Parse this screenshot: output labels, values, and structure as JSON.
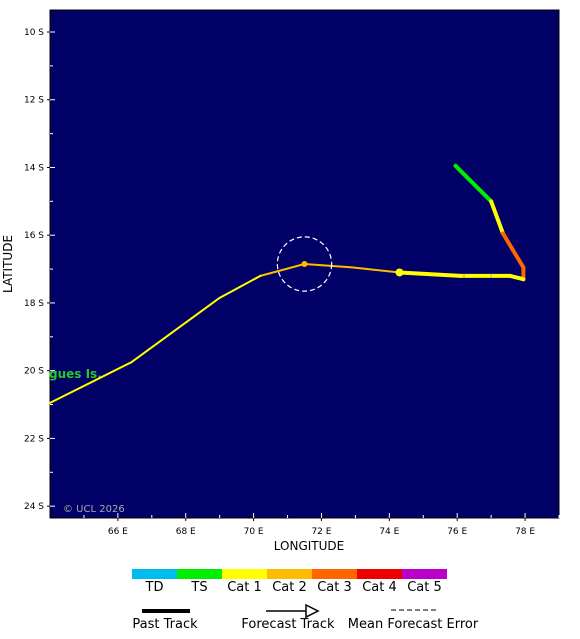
{
  "map": {
    "xlabel": "LONGITUDE",
    "ylabel": "LATITUDE",
    "x_ticks": [
      "66 E",
      "68 E",
      "70 E",
      "72 E",
      "74 E",
      "76 E",
      "78 E"
    ],
    "y_ticks": [
      "10 S",
      "12 S",
      "14 S",
      "16 S",
      "18 S",
      "20 S",
      "22 S",
      "24 S"
    ],
    "x_tick_values": [
      66,
      68,
      70,
      72,
      74,
      76,
      78
    ],
    "y_tick_values": [
      10,
      12,
      14,
      16,
      18,
      20,
      22,
      24
    ],
    "lon_range": [
      64,
      79
    ],
    "lat_range": [
      9.35,
      24.35
    ],
    "background_color": "#000066",
    "copyright": "© UCL 2026",
    "place_label": "gues Is.",
    "place_label_color": "#22cc22"
  },
  "past_track": [
    {
      "lon": 75.95,
      "lat": 13.95,
      "cat": "TS"
    },
    {
      "lon": 77.0,
      "lat": 15.0,
      "cat": "TS"
    },
    {
      "lon": 77.35,
      "lat": 15.95,
      "cat": "Cat 1"
    },
    {
      "lon": 77.95,
      "lat": 16.95,
      "cat": "Cat 3"
    },
    {
      "lon": 77.95,
      "lat": 17.3,
      "cat": "Cat 3"
    },
    {
      "lon": 77.55,
      "lat": 17.2,
      "cat": "Cat 1"
    },
    {
      "lon": 76.1,
      "lat": 17.2,
      "cat": "Cat 1"
    },
    {
      "lon": 74.3,
      "lat": 17.1,
      "cat": "Cat 1"
    }
  ],
  "forecast_track": [
    {
      "lon": 74.3,
      "lat": 17.1,
      "cat": "Cat 2"
    },
    {
      "lon": 72.9,
      "lat": 16.95,
      "cat": "Cat 2"
    },
    {
      "lon": 71.5,
      "lat": 16.85,
      "cat": "Cat 2"
    },
    {
      "lon": 70.2,
      "lat": 17.2,
      "cat": "Cat 2"
    },
    {
      "lon": 69.0,
      "lat": 17.85,
      "cat": "Cat 1"
    },
    {
      "lon": 66.4,
      "lat": 19.75,
      "cat": "Cat 1"
    },
    {
      "lon": 64.0,
      "lat": 20.95,
      "cat": "Cat 1"
    }
  ],
  "current_position": {
    "lon": 74.3,
    "lat": 17.1,
    "cat": "Cat 1"
  },
  "forecast_marker": {
    "lon": 71.5,
    "lat": 16.85,
    "cat": "Cat 2"
  },
  "error_circle": {
    "lon": 71.5,
    "lat": 16.85,
    "radius_deg": 0.8
  },
  "legend": {
    "categories": [
      {
        "label": "TD",
        "color": "#00bbee"
      },
      {
        "label": "TS",
        "color": "#00ee00"
      },
      {
        "label": "Cat 1",
        "color": "#ffff00"
      },
      {
        "label": "Cat 2",
        "color": "#ffbb00"
      },
      {
        "label": "Cat 3",
        "color": "#ff6600"
      },
      {
        "label": "Cat 4",
        "color": "#ee0000"
      },
      {
        "label": "Cat 5",
        "color": "#bb00cc"
      }
    ],
    "past_track_label": "Past Track",
    "forecast_track_label": "Forecast Track",
    "error_label": "Mean Forecast Error"
  },
  "cat_colors": {
    "TD": "#00bbee",
    "TS": "#00ee00",
    "Cat 1": "#ffff00",
    "Cat 2": "#ffbb00",
    "Cat 3": "#ff6600",
    "Cat 4": "#ee0000",
    "Cat 5": "#bb00cc"
  }
}
